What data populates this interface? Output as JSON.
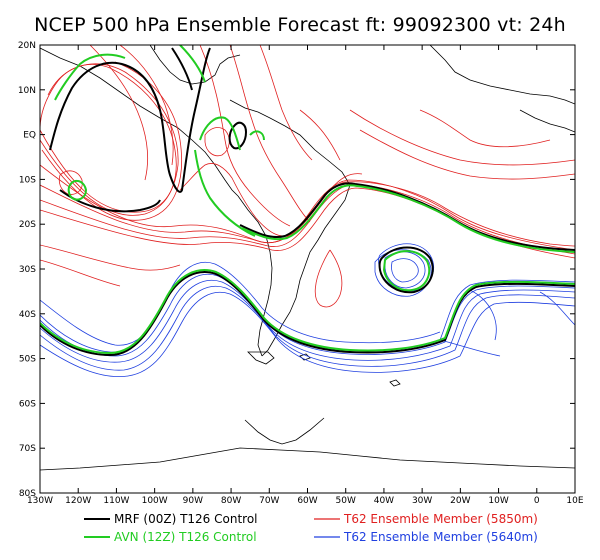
{
  "title": "NCEP 500 hPa Ensemble Forecast  ft: 99092300 vt: 24h",
  "axes": {
    "lat_labels": [
      "20N",
      "10N",
      "EQ",
      "10S",
      "20S",
      "30S",
      "40S",
      "50S",
      "60S",
      "70S",
      "80S"
    ],
    "lon_labels": [
      "130W",
      "120W",
      "110W",
      "100W",
      "90W",
      "80W",
      "70W",
      "60W",
      "50W",
      "40W",
      "30W",
      "20W",
      "10W",
      "0",
      "10E"
    ]
  },
  "legend": [
    {
      "label": "MRF (00Z) T126 Control",
      "color": "#000000"
    },
    {
      "label": "AVN (12Z) T126 Control",
      "color": "#22cc22"
    },
    {
      "label": "T62 Ensemble Member (5850m)",
      "color": "#e02020"
    },
    {
      "label": "T62 Ensemble Member (5640m)",
      "color": "#2040e0"
    }
  ],
  "colors": {
    "mrf": "#000000",
    "avn": "#22cc22",
    "red": "#e02020",
    "blue": "#2040e0"
  }
}
